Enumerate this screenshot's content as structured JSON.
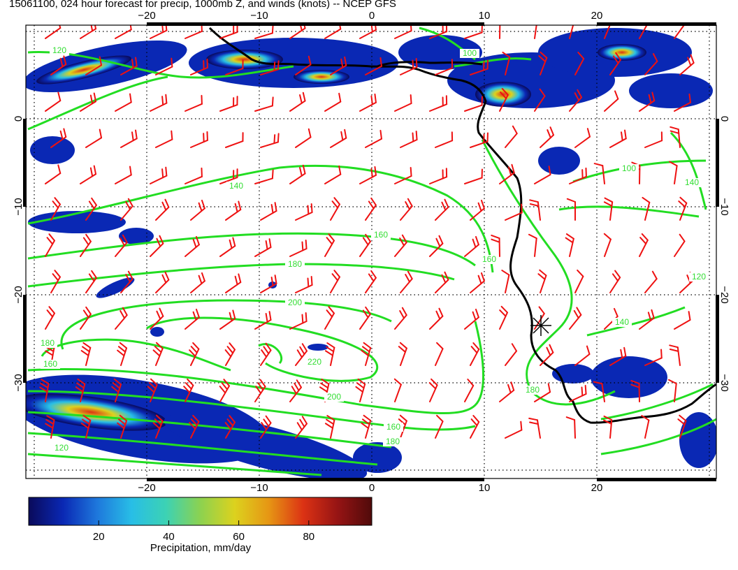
{
  "title": "15061100, 024 hour forecast for precip, 1000mb Z, and winds (knots) -- NCEP GFS",
  "map": {
    "lon_range": [
      -30,
      30
    ],
    "lat_range": [
      -40,
      10
    ],
    "grid": true,
    "lon_ticks": [
      "−20",
      "−10",
      "0",
      "10",
      "20"
    ],
    "lat_ticks": [
      "0",
      "−10",
      "−20",
      "−30"
    ]
  },
  "contours": {
    "color": "#22dd22",
    "labels": [
      "120",
      "100",
      "140",
      "160",
      "180",
      "200",
      "220",
      "180",
      "160",
      "120",
      "100",
      "140",
      "160",
      "140",
      "180",
      "200",
      "180",
      "160",
      "120"
    ]
  },
  "winds": {
    "color": "#ee1111",
    "units": "knots"
  },
  "colorbar": {
    "label": "Precipitation, mm/day",
    "ticks": [
      "20",
      "40",
      "60",
      "80"
    ],
    "min": 0,
    "max": 98,
    "colors": [
      "#0a0a5a",
      "#0a28b4",
      "#1e78dc",
      "#28bee6",
      "#3cd2b4",
      "#8cd250",
      "#dcd21e",
      "#e69614",
      "#dc3214",
      "#961414",
      "#500a0a"
    ]
  },
  "marker": {
    "symbol": "asterisk",
    "lon": 15,
    "lat": -24
  }
}
